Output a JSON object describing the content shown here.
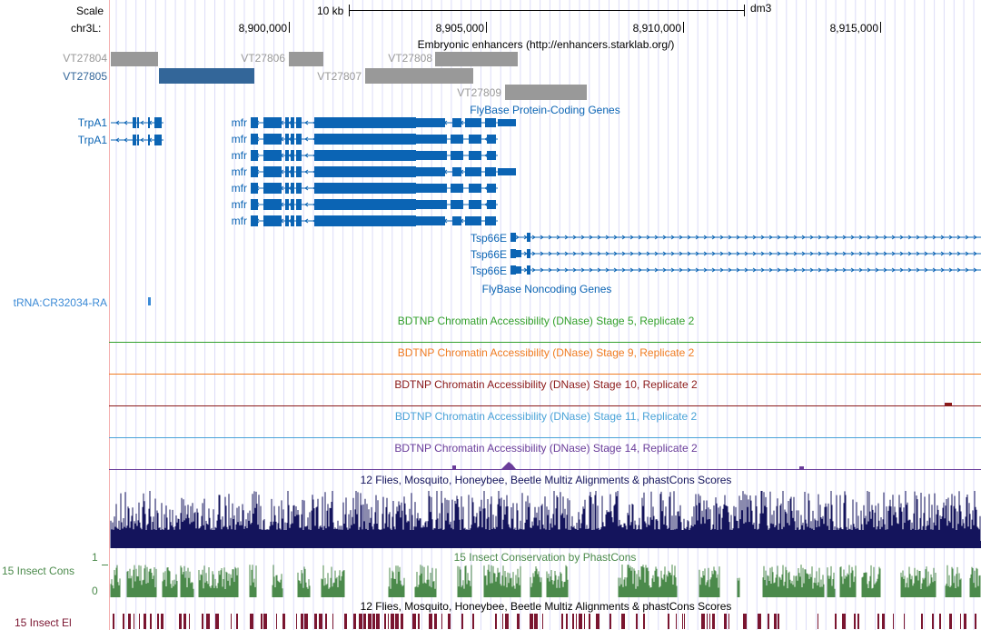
{
  "ruler": {
    "scale_label": "Scale",
    "chrom_label": "chr3L:",
    "scale_bar_label": "10 kb",
    "assembly": "dm3",
    "positions": [
      "8,900,000",
      "8,905,000",
      "8,910,000",
      "8,915,000"
    ]
  },
  "tracks": {
    "enhancers": {
      "title": "Embryonic enhancers (http://enhancers.starklab.org/)",
      "items": [
        {
          "label": "VT27804",
          "color": "#999999"
        },
        {
          "label": "VT27805",
          "color": "#336699"
        },
        {
          "label": "VT27806",
          "color": "#999999"
        },
        {
          "label": "VT27807",
          "color": "#999999"
        },
        {
          "label": "VT27808",
          "color": "#999999"
        },
        {
          "label": "VT27809",
          "color": "#999999"
        }
      ]
    },
    "protein_coding": {
      "title": "FlyBase Protein-Coding Genes",
      "color": "#0b64b4",
      "genes": [
        "TrpA1",
        "TrpA1",
        "mfr",
        "mfr",
        "mfr",
        "mfr",
        "mfr",
        "mfr",
        "mfr",
        "Tsp66E",
        "Tsp66E",
        "Tsp66E"
      ]
    },
    "noncoding": {
      "title": "FlyBase Noncoding Genes",
      "genes": [
        "tRNA:CR32034-RA"
      ],
      "color": "#3b8ad6"
    },
    "dnase": [
      {
        "title": "BDTNP Chromatin Accessibility (DNase) Stage 5, Replicate 2",
        "color": "#33a02c"
      },
      {
        "title": "BDTNP Chromatin Accessibility (DNase) Stage 9, Replicate 2",
        "color": "#f07c22"
      },
      {
        "title": "BDTNP Chromatin Accessibility (DNase) Stage 10, Replicate 2",
        "color": "#8b1a1a"
      },
      {
        "title": "BDTNP Chromatin Accessibility (DNase) Stage 11, Replicate 2",
        "color": "#4aa3d8"
      },
      {
        "title": "BDTNP Chromatin Accessibility (DNase) Stage 14, Replicate 2",
        "color": "#6a3d9a"
      }
    ],
    "multiz": {
      "title": "12 Flies, Mosquito, Honeybee, Beetle Multiz Alignments & phastCons Scores",
      "color": "#14145c"
    },
    "phastcons": {
      "title": "15 Insect Conservation by PhastCons",
      "left_label": "15 Insect Cons",
      "axis_max": "1",
      "axis_min": "0",
      "color": "#4b8a4b"
    },
    "elements": {
      "title": "12 Flies, Mosquito, Honeybee, Beetle Multiz Alignments & phastCons Scores",
      "left_label": "15 Insect El",
      "color": "#7a1530"
    }
  }
}
